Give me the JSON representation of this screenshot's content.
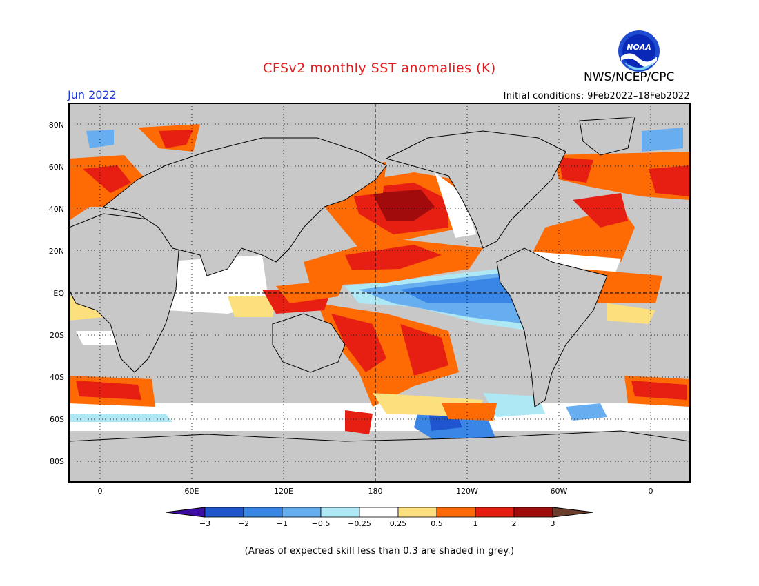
{
  "title": "CFSv2 monthly SST anomalies (K)",
  "agency": "NWS/NCEP/CPC",
  "logo_text": "NOAA",
  "period": "Jun 2022",
  "initial_conditions": "Initial conditions: 9Feb2022–18Feb2022",
  "footnote": "(Areas of expected skill less than 0.3 are shaded in grey.)",
  "map": {
    "lat_labels": [
      "80N",
      "60N",
      "40N",
      "20N",
      "EQ",
      "20S",
      "40S",
      "60S",
      "80S"
    ],
    "lon_labels": [
      "0",
      "60E",
      "120E",
      "180",
      "120W",
      "60W",
      "0"
    ],
    "lon_values": [
      0,
      60,
      120,
      180,
      240,
      300,
      360
    ],
    "lat_values": [
      80,
      60,
      40,
      20,
      0,
      -20,
      -40,
      -60,
      -80
    ],
    "colors": {
      "ocean_low_skill": "#c8c8c8",
      "land": "#c8c8c8",
      "coast": "#000000"
    }
  },
  "colorbar": {
    "labels": [
      "−3",
      "−2",
      "−1",
      "−0.5",
      "−0.25",
      "0.25",
      "0.5",
      "1",
      "2",
      "3"
    ],
    "colors": [
      "#3d0da3",
      "#1f56cf",
      "#3a86e6",
      "#67aef0",
      "#aee8f5",
      "#ffffff",
      "#fce07e",
      "#fe6a04",
      "#e61f12",
      "#a10b0b",
      "#6b3d2d"
    ]
  }
}
